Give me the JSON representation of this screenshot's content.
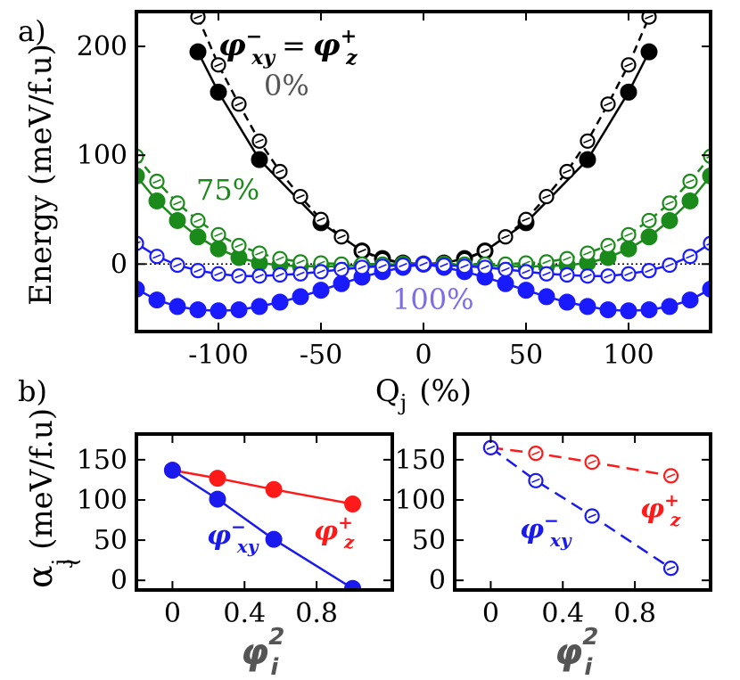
{
  "panel_labels": {
    "a": "a)",
    "b": "b)"
  },
  "colors": {
    "p0": "#000000",
    "p75": "#1a8a1a",
    "p100": "#1a1aff",
    "red": "#ff1a1a",
    "blue": "#1a1aee",
    "gray": "#555555",
    "lavender": "#7c6cf0"
  },
  "chart_data": [
    {
      "id": "energy",
      "type": "line",
      "title": "",
      "xlabel": "Q",
      "xlabel_sub": "j",
      "xlabel_unit": "(%)",
      "ylabel": "Energy (meV/f.u)",
      "xlim": [
        -140,
        140
      ],
      "ylim": [
        -62,
        232
      ],
      "xticks": [
        -100,
        -50,
        0,
        50,
        100
      ],
      "xtick_labels": [
        "-100",
        "-50",
        "0",
        "50",
        "100"
      ],
      "yticks": [
        0,
        100,
        200
      ],
      "ytick_labels": [
        "0",
        "100",
        "200"
      ],
      "zero_line": true,
      "annotation": {
        "lhs": "φ",
        "lhs_sup": "−",
        "lhs_sub": "xy",
        "eq": "=",
        "rhs": "φ",
        "rhs_sup": "+",
        "rhs_sub": "z"
      },
      "series": [
        {
          "name": "0% filled",
          "label": "0%",
          "color_key": "p0",
          "marker": "filled",
          "dash": false,
          "x": [
            -110,
            -100,
            -80,
            -50,
            -30,
            -20,
            -10,
            0,
            10,
            20,
            30,
            50,
            80,
            100,
            110
          ],
          "y": [
            195,
            158,
            96,
            38,
            12,
            5,
            1,
            0,
            1,
            5,
            12,
            38,
            96,
            158,
            195
          ]
        },
        {
          "name": "0% open",
          "color_key": "p0",
          "marker": "open",
          "dash": true,
          "x": [
            -110,
            -100,
            -90,
            -80,
            -70,
            -60,
            -50,
            -40,
            -30,
            -20,
            -10,
            0,
            10,
            20,
            30,
            40,
            50,
            60,
            70,
            80,
            90,
            100,
            110
          ],
          "y": [
            227,
            183,
            147,
            113,
            85,
            62,
            41,
            25,
            12,
            4,
            1,
            0,
            1,
            4,
            12,
            25,
            41,
            62,
            85,
            113,
            147,
            183,
            227
          ]
        },
        {
          "name": "75% filled",
          "label": "75%",
          "color_key": "p75",
          "marker": "filled",
          "dash": false,
          "x": [
            -140,
            -130,
            -120,
            -110,
            -100,
            -90,
            -80,
            -70,
            -60,
            -50,
            -40,
            -30,
            -20,
            -10,
            0,
            10,
            20,
            30,
            40,
            50,
            60,
            70,
            80,
            90,
            100,
            110,
            120,
            130,
            140
          ],
          "y": [
            81,
            58,
            40,
            25,
            14,
            6,
            1,
            -1,
            -2,
            -2,
            -2,
            -1,
            -1,
            0,
            0,
            0,
            -1,
            -1,
            -2,
            -2,
            -2,
            -1,
            1,
            6,
            14,
            25,
            40,
            58,
            81
          ]
        },
        {
          "name": "75% open",
          "color_key": "p75",
          "marker": "open",
          "dash": true,
          "x": [
            -140,
            -130,
            -120,
            -110,
            -100,
            -90,
            -80,
            -70,
            -60,
            -50,
            -40,
            -30,
            -20,
            -10,
            0,
            10,
            20,
            30,
            40,
            50,
            60,
            70,
            80,
            90,
            100,
            110,
            120,
            130,
            140
          ],
          "y": [
            99,
            76,
            56,
            40,
            27,
            17,
            10,
            5,
            2,
            1,
            0,
            0,
            0,
            0,
            0,
            0,
            0,
            0,
            0,
            1,
            2,
            5,
            10,
            17,
            27,
            40,
            56,
            76,
            99
          ]
        },
        {
          "name": "100% filled",
          "label": "100%",
          "color_key": "p100",
          "marker": "filled",
          "dash": false,
          "x": [
            -140,
            -130,
            -120,
            -110,
            -100,
            -90,
            -80,
            -70,
            -60,
            -50,
            -40,
            -30,
            -20,
            -10,
            0,
            10,
            20,
            30,
            40,
            50,
            60,
            70,
            80,
            90,
            100,
            110,
            120,
            130,
            140
          ],
          "y": [
            -23,
            -33,
            -39,
            -42,
            -43,
            -42,
            -39,
            -35,
            -30,
            -24,
            -18,
            -12,
            -7,
            -3,
            0,
            -3,
            -7,
            -12,
            -18,
            -24,
            -30,
            -35,
            -39,
            -42,
            -43,
            -42,
            -39,
            -33,
            -23
          ]
        },
        {
          "name": "100% open",
          "color_key": "p100",
          "marker": "open",
          "dash": false,
          "x": [
            -140,
            -130,
            -120,
            -110,
            -100,
            -90,
            -80,
            -70,
            -60,
            -50,
            -40,
            -30,
            -20,
            -10,
            0,
            10,
            20,
            30,
            40,
            50,
            60,
            70,
            80,
            90,
            100,
            110,
            120,
            130,
            140
          ],
          "y": [
            19,
            7,
            -1,
            -6,
            -9,
            -11,
            -11,
            -10,
            -9,
            -7,
            -5,
            -3,
            -2,
            -1,
            0,
            -1,
            -2,
            -3,
            -5,
            -7,
            -9,
            -10,
            -11,
            -11,
            -9,
            -6,
            -1,
            7,
            19
          ]
        }
      ]
    },
    {
      "id": "alpha-left",
      "type": "line",
      "xlabel": "φ",
      "xlabel_sup": "2",
      "xlabel_sub": "i",
      "ylabel": "α",
      "ylabel_sub": "j",
      "ylabel_unit": "(meV/f.u)",
      "xlim": [
        -0.2,
        1.22
      ],
      "ylim": [
        -12,
        182
      ],
      "xticks": [
        0,
        0.4,
        0.8
      ],
      "xtick_labels": [
        "0",
        "0.4",
        "0.8"
      ],
      "yticks": [
        0,
        50,
        100,
        150
      ],
      "ytick_labels": [
        "0",
        "50",
        "100",
        "150"
      ],
      "series": [
        {
          "name": "phi_z_plus",
          "label_base": "φ",
          "label_sup": "+",
          "label_sub": "z",
          "color_key": "red",
          "marker": "filled",
          "dash": false,
          "x": [
            0,
            0.25,
            0.5625,
            1.0
          ],
          "y": [
            137,
            127,
            113,
            95
          ]
        },
        {
          "name": "phi_xy_minus",
          "label_base": "φ",
          "label_sup": "−",
          "label_sub": "xy",
          "color_key": "blue",
          "marker": "filled",
          "dash": false,
          "x": [
            0,
            0.25,
            0.5625,
            1.0
          ],
          "y": [
            137,
            101,
            51,
            -10
          ]
        }
      ]
    },
    {
      "id": "alpha-right",
      "type": "line",
      "xlabel": "φ",
      "xlabel_sup": "2",
      "xlabel_sub": "i",
      "xlim": [
        -0.2,
        1.22
      ],
      "ylim": [
        -12,
        182
      ],
      "xticks": [
        0,
        0.4,
        0.8
      ],
      "xtick_labels": [
        "0",
        "0.4",
        "0.8"
      ],
      "yticks": [
        0,
        50,
        100,
        150
      ],
      "ytick_labels": [
        "0",
        "50",
        "100",
        "150"
      ],
      "series": [
        {
          "name": "phi_z_plus",
          "label_base": "φ",
          "label_sup": "+",
          "label_sub": "z",
          "color_key": "red",
          "marker": "open",
          "dash": true,
          "x": [
            0,
            0.25,
            0.5625,
            1.0
          ],
          "y": [
            165,
            158,
            147,
            130
          ]
        },
        {
          "name": "phi_xy_minus",
          "label_base": "φ",
          "label_sup": "−",
          "label_sub": "xy",
          "color_key": "blue",
          "marker": "open",
          "dash": true,
          "x": [
            0,
            0.25,
            0.5625,
            1.0
          ],
          "y": [
            165,
            124,
            80,
            15
          ]
        }
      ]
    }
  ]
}
